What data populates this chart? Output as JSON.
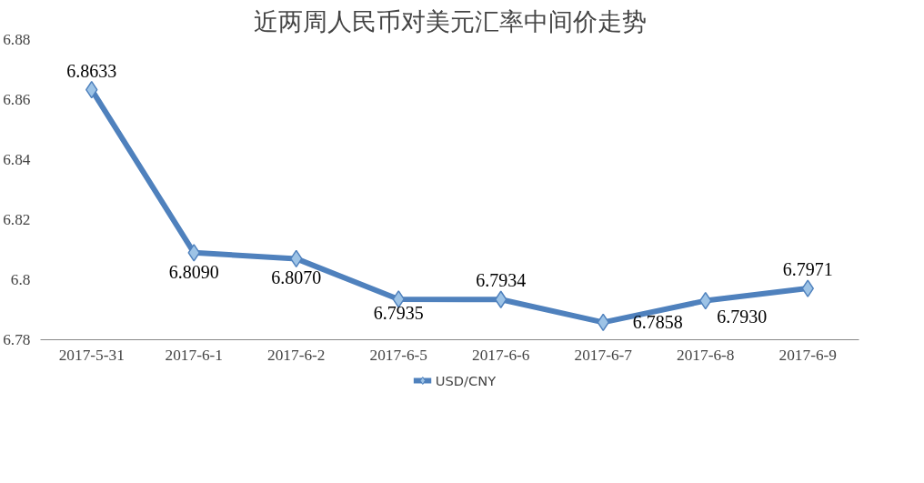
{
  "chart_data": {
    "type": "line",
    "title": "近两周人民币对美元汇率中间价走势",
    "categories": [
      "2017-5-31",
      "2017-6-1",
      "2017-6-2",
      "2017-6-5",
      "2017-6-6",
      "2017-6-7",
      "2017-6-8",
      "2017-6-9"
    ],
    "series": [
      {
        "name": "USD/CNY",
        "color": "#4f81bd",
        "values": [
          6.8633,
          6.809,
          6.807,
          6.7935,
          6.7934,
          6.7858,
          6.793,
          6.7971
        ],
        "value_labels": [
          "6.8633",
          "6.8090",
          "6.8070",
          "6.7935",
          "6.7934",
          "6.7858",
          "6.7930",
          "6.7971"
        ]
      }
    ],
    "ylim": [
      6.78,
      6.88
    ],
    "yticks": [
      6.78,
      6.8,
      6.82,
      6.84,
      6.86,
      6.88
    ],
    "grid": false,
    "legend": "bottom",
    "marker": "diamond",
    "line_style": "solid"
  }
}
